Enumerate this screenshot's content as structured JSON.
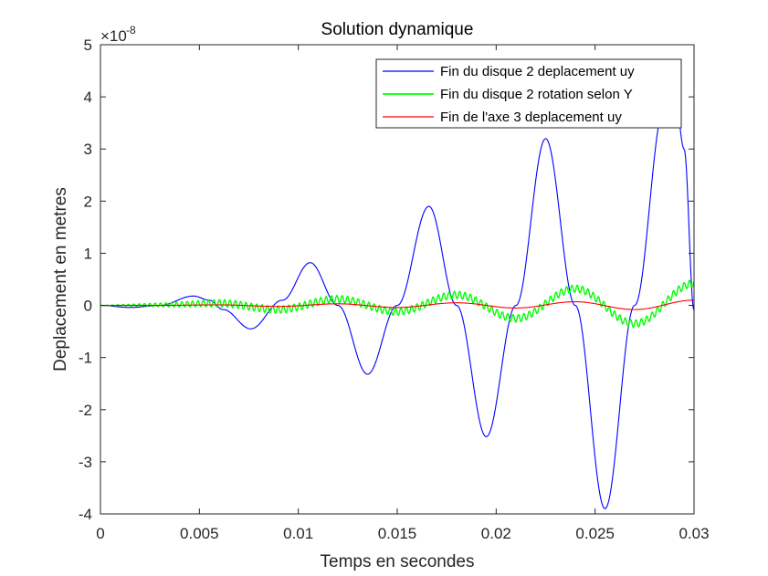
{
  "chart_data": {
    "type": "line",
    "title": "Solution dynamique",
    "xlabel": "Temps en secondes",
    "ylabel": "Deplacement en metres",
    "exponent_label": "×10",
    "exponent_power": "-8",
    "xlim": [
      0,
      0.03
    ],
    "ylim": [
      -4,
      5
    ],
    "xticks": [
      "0",
      "0.005",
      "0.01",
      "0.015",
      "0.02",
      "0.025",
      "0.03"
    ],
    "xtick_values": [
      0,
      0.005,
      0.01,
      0.015,
      0.02,
      0.025,
      0.03
    ],
    "yticks": [
      "5",
      "4",
      "3",
      "2",
      "1",
      "0",
      "-1",
      "-2",
      "-3",
      "-4"
    ],
    "ytick_values": [
      5,
      4,
      3,
      2,
      1,
      0,
      -1,
      -2,
      -3,
      -4
    ],
    "grid": false,
    "legend_position": "top-right",
    "series": [
      {
        "name": "Fin du disque 2 deplacement uy",
        "color": "#0000ff",
        "x": [
          0,
          0.0015,
          0.003,
          0.0047,
          0.0055,
          0.0062,
          0.0076,
          0.0092,
          0.0106,
          0.012,
          0.0135,
          0.015,
          0.0166,
          0.018,
          0.0195,
          0.021,
          0.0225,
          0.024,
          0.0255,
          0.027,
          0.0285,
          0.029,
          0.0295,
          0.03
        ],
        "y": [
          0,
          -0.04,
          0,
          0.18,
          0.1,
          -0.08,
          -0.45,
          0.1,
          0.82,
          0.0,
          -1.32,
          0.0,
          1.9,
          0.0,
          -2.52,
          0.0,
          3.2,
          0.0,
          -3.9,
          0.0,
          3.8,
          4.15,
          3.0,
          -0.1
        ]
      },
      {
        "name": "Fin du disque 2 rotation selon Y",
        "color": "#00ff00",
        "x": [
          0,
          0.003,
          0.006,
          0.009,
          0.012,
          0.015,
          0.018,
          0.021,
          0.024,
          0.027,
          0.03
        ],
        "y": [
          0,
          0.01,
          0.04,
          -0.08,
          0.12,
          -0.12,
          0.2,
          -0.25,
          0.32,
          -0.35,
          0.42
        ],
        "carrier_amplitude": 0.07,
        "carrier_period": 0.00027
      },
      {
        "name": "Fin de l'axe 3 deplacement uy",
        "color": "#ff0000",
        "x": [
          0,
          0.003,
          0.006,
          0.009,
          0.012,
          0.015,
          0.018,
          0.021,
          0.024,
          0.027,
          0.03
        ],
        "y": [
          0,
          0.0,
          0.01,
          -0.02,
          0.03,
          -0.04,
          0.05,
          -0.05,
          0.07,
          -0.08,
          0.1
        ]
      }
    ]
  }
}
